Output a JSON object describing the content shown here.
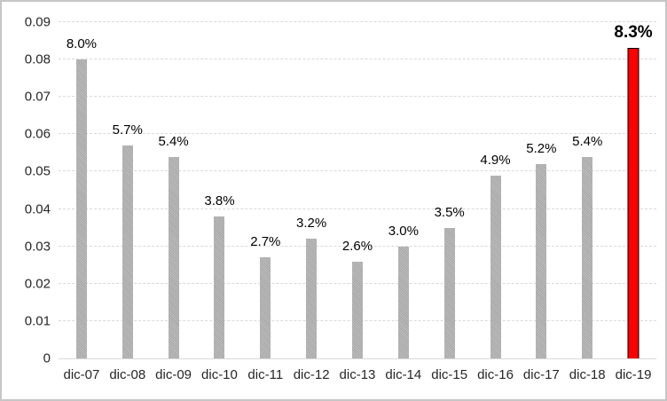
{
  "chart_data": {
    "type": "bar",
    "title": "",
    "xlabel": "",
    "ylabel": "",
    "legend": "none",
    "grid": "horizontal-dashed",
    "ylim": [
      0,
      0.09
    ],
    "categories": [
      "dic-07",
      "dic-08",
      "dic-09",
      "dic-10",
      "dic-11",
      "dic-12",
      "dic-13",
      "dic-14",
      "dic-15",
      "dic-16",
      "dic-17",
      "dic-18",
      "dic-19"
    ],
    "values": [
      0.08,
      0.057,
      0.054,
      0.038,
      0.027,
      0.032,
      0.026,
      0.03,
      0.035,
      0.049,
      0.052,
      0.054,
      0.083
    ],
    "data_labels": [
      "8.0%",
      "5.7%",
      "5.4%",
      "3.8%",
      "2.7%",
      "3.2%",
      "2.6%",
      "3.0%",
      "3.5%",
      "4.9%",
      "5.2%",
      "5.4%",
      "8.3%"
    ],
    "y_ticks": [
      {
        "label": "0",
        "value": 0.0
      },
      {
        "label": "0.01",
        "value": 0.01
      },
      {
        "label": "0.02",
        "value": 0.02
      },
      {
        "label": "0.03",
        "value": 0.03
      },
      {
        "label": "0.04",
        "value": 0.04
      },
      {
        "label": "0.05",
        "value": 0.05
      },
      {
        "label": "0.06",
        "value": 0.06
      },
      {
        "label": "0.07",
        "value": 0.07
      },
      {
        "label": "0.08",
        "value": 0.08
      },
      {
        "label": "0.09",
        "value": 0.09
      }
    ],
    "highlight_index": 12,
    "colors": {
      "bar": "#ACACAC",
      "highlight": "#FF0000",
      "highlight_border": "#000000",
      "gridline": "#D9D9D9",
      "axis_line": "#D9D9D9",
      "axis_text": "#262626",
      "label_text": "#000000"
    }
  }
}
